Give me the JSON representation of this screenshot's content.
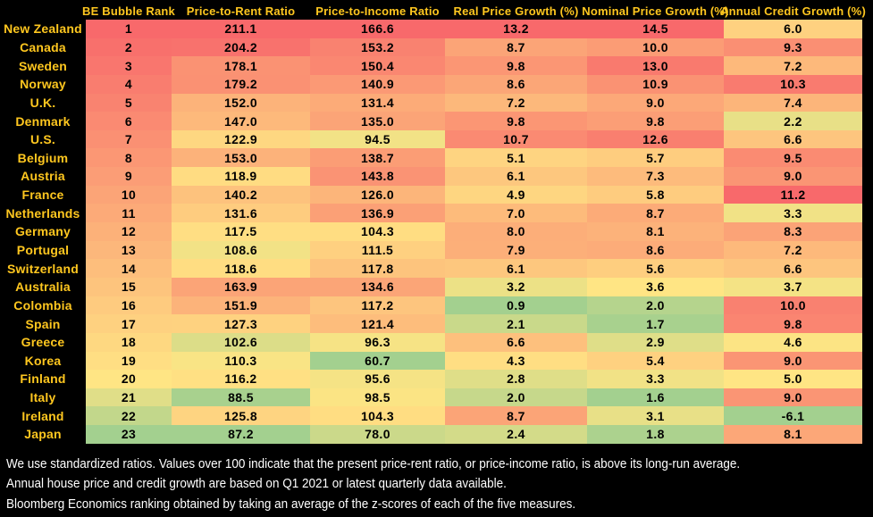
{
  "chart_data": {
    "type": "heatmap",
    "corner_label": "",
    "columns": [
      "BE Bubble Rank",
      "Price-to-Rent Ratio",
      "Price-to-Income Ratio",
      "Real Price Growth (%)",
      "Nominal Price Growth (%)",
      "Annual Credit Growth (%)"
    ],
    "rows": [
      {
        "country": "New Zealand",
        "values": [
          1,
          211.1,
          166.6,
          13.2,
          14.5,
          6.0
        ]
      },
      {
        "country": "Canada",
        "values": [
          2,
          204.2,
          153.2,
          8.7,
          10.0,
          9.3
        ]
      },
      {
        "country": "Sweden",
        "values": [
          3,
          178.1,
          150.4,
          9.8,
          13.0,
          7.2
        ]
      },
      {
        "country": "Norway",
        "values": [
          4,
          179.2,
          140.9,
          8.6,
          10.9,
          10.3
        ]
      },
      {
        "country": "U.K.",
        "values": [
          5,
          152.0,
          131.4,
          7.2,
          9.0,
          7.4
        ]
      },
      {
        "country": "Denmark",
        "values": [
          6,
          147.0,
          135.0,
          9.8,
          9.8,
          2.2
        ]
      },
      {
        "country": "U.S.",
        "values": [
          7,
          122.9,
          94.5,
          10.7,
          12.6,
          6.6
        ]
      },
      {
        "country": "Belgium",
        "values": [
          8,
          153.0,
          138.7,
          5.1,
          5.7,
          9.5
        ]
      },
      {
        "country": "Austria",
        "values": [
          9,
          118.9,
          143.8,
          6.1,
          7.3,
          9.0
        ]
      },
      {
        "country": "France",
        "values": [
          10,
          140.2,
          126.0,
          4.9,
          5.8,
          11.2
        ]
      },
      {
        "country": "Netherlands",
        "values": [
          11,
          131.6,
          136.9,
          7.0,
          8.7,
          3.3
        ]
      },
      {
        "country": "Germany",
        "values": [
          12,
          117.5,
          104.3,
          8.0,
          8.1,
          8.3
        ]
      },
      {
        "country": "Portugal",
        "values": [
          13,
          108.6,
          111.5,
          7.9,
          8.6,
          7.2
        ]
      },
      {
        "country": "Switzerland",
        "values": [
          14,
          118.6,
          117.8,
          6.1,
          5.6,
          6.6
        ]
      },
      {
        "country": "Australia",
        "values": [
          15,
          163.9,
          134.6,
          3.2,
          3.6,
          3.7
        ]
      },
      {
        "country": "Colombia",
        "values": [
          16,
          151.9,
          117.2,
          0.9,
          2.0,
          10.0
        ]
      },
      {
        "country": "Spain",
        "values": [
          17,
          127.3,
          121.4,
          2.1,
          1.7,
          9.8
        ]
      },
      {
        "country": "Greece",
        "values": [
          18,
          102.6,
          96.3,
          6.6,
          2.9,
          4.6
        ]
      },
      {
        "country": "Korea",
        "values": [
          19,
          110.3,
          60.7,
          4.3,
          5.4,
          9.0
        ]
      },
      {
        "country": "Finland",
        "values": [
          20,
          116.2,
          95.6,
          2.8,
          3.3,
          5.0
        ]
      },
      {
        "country": "Italy",
        "values": [
          21,
          88.5,
          98.5,
          2.0,
          1.6,
          9.0
        ]
      },
      {
        "country": "Ireland",
        "values": [
          22,
          125.8,
          104.3,
          8.7,
          3.1,
          -6.1
        ]
      },
      {
        "country": "Japan",
        "values": [
          23,
          87.2,
          78.0,
          2.4,
          1.8,
          8.1
        ]
      }
    ],
    "value_formats": [
      "integer",
      "1dp",
      "1dp",
      "1dp",
      "1dp",
      "1dp"
    ],
    "color_scale": {
      "green": "#A3D08F",
      "yellow": "#FFE584",
      "red": "#F8696B"
    },
    "column_anchors": [
      {
        "green": 23,
        "yellow": 20,
        "red": 1
      },
      {
        "green": 87.2,
        "yellow": 112,
        "red": 211.1
      },
      {
        "green": 60.7,
        "yellow": 100,
        "red": 166.6
      },
      {
        "green": 0.9,
        "yellow": 3.8,
        "red": 13.2
      },
      {
        "green": 1.6,
        "yellow": 3.6,
        "red": 14.5
      },
      {
        "green": -6.1,
        "yellow": 5.0,
        "red": 11.2
      }
    ],
    "legend_position": "none",
    "grid": false
  },
  "footnotes": [
    "We use standardized ratios. Values over 100 indicate that the present price-rent ratio, or price-income ratio, is above its long-run average.",
    "Annual house price and credit growth are based on Q1 2021 or latest quarterly data available.",
    "Bloomberg Economics ranking obtained by taking an average of the z-scores of each of the five measures."
  ],
  "colors": {
    "background": "#000000",
    "accent_gold": "#FFC71F",
    "cell_text": "#000000",
    "footnote_text": "#FFFFFF"
  }
}
